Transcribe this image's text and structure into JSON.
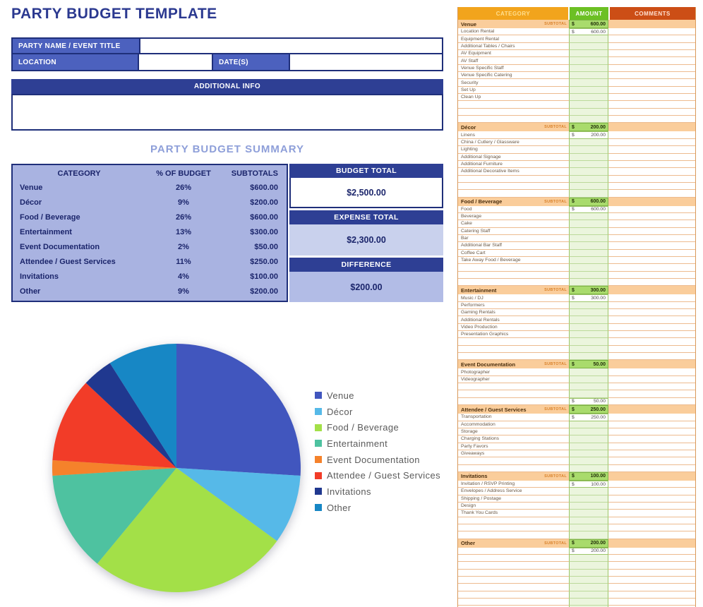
{
  "page_title": "PARTY BUDGET TEMPLATE",
  "form": {
    "party_name_label": "PARTY NAME / EVENT TITLE",
    "party_name_value": "",
    "location_label": "LOCATION",
    "location_value": "",
    "dates_label": "DATE(S)",
    "dates_value": "",
    "additional_info_label": "ADDITIONAL INFO",
    "additional_info_value": ""
  },
  "summary": {
    "title": "PARTY BUDGET SUMMARY",
    "columns": [
      "CATEGORY",
      "% OF BUDGET",
      "SUBTOTALS"
    ],
    "rows": [
      {
        "category": "Venue",
        "percent": "26%",
        "subtotal": "$600.00"
      },
      {
        "category": "Décor",
        "percent": "9%",
        "subtotal": "$200.00"
      },
      {
        "category": "Food / Beverage",
        "percent": "26%",
        "subtotal": "$600.00"
      },
      {
        "category": "Entertainment",
        "percent": "13%",
        "subtotal": "$300.00"
      },
      {
        "category": "Event Documentation",
        "percent": "2%",
        "subtotal": "$50.00"
      },
      {
        "category": "Attendee / Guest Services",
        "percent": "11%",
        "subtotal": "$250.00"
      },
      {
        "category": "Invitations",
        "percent": "4%",
        "subtotal": "$100.00"
      },
      {
        "category": "Other",
        "percent": "9%",
        "subtotal": "$200.00"
      }
    ],
    "budget_total_label": "BUDGET TOTAL",
    "budget_total_value": "$2,500.00",
    "expense_total_label": "EXPENSE TOTAL",
    "expense_total_value": "$2,300.00",
    "difference_label": "DIFFERENCE",
    "difference_value": "$200.00"
  },
  "chart_data": {
    "type": "pie",
    "title": "",
    "categories": [
      "Venue",
      "Décor",
      "Food / Beverage",
      "Entertainment",
      "Event Documentation",
      "Attendee / Guest Services",
      "Invitations",
      "Other"
    ],
    "values": [
      26,
      9,
      26,
      13,
      2,
      11,
      4,
      9
    ],
    "subtotals_usd": [
      600,
      200,
      600,
      300,
      50,
      250,
      100,
      200
    ],
    "colors": [
      "#4156BE",
      "#56B9E8",
      "#A3E048",
      "#4EC2A0",
      "#F5822B",
      "#F23C28",
      "#20388F",
      "#1787C5"
    ],
    "legend_position": "right",
    "start_angle_deg": 0,
    "direction": "clockwise"
  },
  "sheet": {
    "columns": [
      "CATEGORY",
      "AMOUNT",
      "COMMENTS"
    ],
    "subtotal_label": "SUBTOTAL",
    "currency_symbol": "$",
    "sections": [
      {
        "name": "Venue",
        "subtotal": "600.00",
        "rows": [
          {
            "label": "Location Rental",
            "amount": "600.00",
            "comment": ""
          },
          {
            "label": "Equipment Rental",
            "amount": "",
            "comment": ""
          },
          {
            "label": "Additional Tables / Chairs",
            "amount": "",
            "comment": ""
          },
          {
            "label": "AV Equipment",
            "amount": "",
            "comment": ""
          },
          {
            "label": "AV Staff",
            "amount": "",
            "comment": ""
          },
          {
            "label": "Venue Specific Staff",
            "amount": "",
            "comment": ""
          },
          {
            "label": "Venue Specific Catering",
            "amount": "",
            "comment": ""
          },
          {
            "label": "Security",
            "amount": "",
            "comment": ""
          },
          {
            "label": "Set Up",
            "amount": "",
            "comment": ""
          },
          {
            "label": "Clean Up",
            "amount": "",
            "comment": ""
          },
          {
            "label": "",
            "amount": "",
            "comment": ""
          },
          {
            "label": "",
            "amount": "",
            "comment": ""
          },
          {
            "label": "",
            "amount": "",
            "comment": ""
          }
        ]
      },
      {
        "name": "Décor",
        "subtotal": "200.00",
        "rows": [
          {
            "label": "Linens",
            "amount": "200.00",
            "comment": ""
          },
          {
            "label": "China / Cutlery / Glassware",
            "amount": "",
            "comment": ""
          },
          {
            "label": "Lighting",
            "amount": "",
            "comment": ""
          },
          {
            "label": "Additional Signage",
            "amount": "",
            "comment": ""
          },
          {
            "label": "Additional Furniture",
            "amount": "",
            "comment": ""
          },
          {
            "label": "Additional Decorative Items",
            "amount": "",
            "comment": ""
          },
          {
            "label": "",
            "amount": "",
            "comment": ""
          },
          {
            "label": "",
            "amount": "",
            "comment": ""
          },
          {
            "label": "",
            "amount": "",
            "comment": ""
          }
        ]
      },
      {
        "name": "Food / Beverage",
        "subtotal": "600.00",
        "rows": [
          {
            "label": "Food",
            "amount": "600.00",
            "comment": ""
          },
          {
            "label": "Beverage",
            "amount": "",
            "comment": ""
          },
          {
            "label": "Cake",
            "amount": "",
            "comment": ""
          },
          {
            "label": "Catering Staff",
            "amount": "",
            "comment": ""
          },
          {
            "label": "Bar",
            "amount": "",
            "comment": ""
          },
          {
            "label": "Additional Bar Staff",
            "amount": "",
            "comment": ""
          },
          {
            "label": "Coffee Cart",
            "amount": "",
            "comment": ""
          },
          {
            "label": "Take Away Food / Beverage",
            "amount": "",
            "comment": ""
          },
          {
            "label": "",
            "amount": "",
            "comment": ""
          },
          {
            "label": "",
            "amount": "",
            "comment": ""
          },
          {
            "label": "",
            "amount": "",
            "comment": ""
          }
        ]
      },
      {
        "name": "Entertainment",
        "subtotal": "300.00",
        "rows": [
          {
            "label": "Music / DJ",
            "amount": "300.00",
            "comment": ""
          },
          {
            "label": "Performers",
            "amount": "",
            "comment": ""
          },
          {
            "label": "Gaming Rentals",
            "amount": "",
            "comment": ""
          },
          {
            "label": "Additional Rentals",
            "amount": "",
            "comment": ""
          },
          {
            "label": "Video Production",
            "amount": "",
            "comment": ""
          },
          {
            "label": "Presentation Graphics",
            "amount": "",
            "comment": ""
          },
          {
            "label": "",
            "amount": "",
            "comment": ""
          },
          {
            "label": "",
            "amount": "",
            "comment": ""
          },
          {
            "label": "",
            "amount": "",
            "comment": ""
          }
        ]
      },
      {
        "name": "Event Documentation",
        "subtotal": "50.00",
        "rows": [
          {
            "label": "Photographer",
            "amount": "",
            "comment": ""
          },
          {
            "label": "Videographer",
            "amount": "",
            "comment": ""
          },
          {
            "label": "",
            "amount": "",
            "comment": ""
          },
          {
            "label": "",
            "amount": "",
            "comment": ""
          },
          {
            "label": "",
            "amount": "50.00",
            "comment": ""
          }
        ]
      },
      {
        "name": "Attendee / Guest Services",
        "subtotal": "250.00",
        "rows": [
          {
            "label": "Transportation",
            "amount": "250.00",
            "comment": ""
          },
          {
            "label": "Accommodation",
            "amount": "",
            "comment": ""
          },
          {
            "label": "Storage",
            "amount": "",
            "comment": ""
          },
          {
            "label": "Charging Stations",
            "amount": "",
            "comment": ""
          },
          {
            "label": "Party Favors",
            "amount": "",
            "comment": ""
          },
          {
            "label": "Giveaways",
            "amount": "",
            "comment": ""
          },
          {
            "label": "",
            "amount": "",
            "comment": ""
          },
          {
            "label": "",
            "amount": "",
            "comment": ""
          }
        ]
      },
      {
        "name": "Invitations",
        "subtotal": "100.00",
        "rows": [
          {
            "label": "Invitation / RSVP Printing",
            "amount": "100.00",
            "comment": ""
          },
          {
            "label": "Envelopes / Address Service",
            "amount": "",
            "comment": ""
          },
          {
            "label": "Shipping / Postage",
            "amount": "",
            "comment": ""
          },
          {
            "label": "Design",
            "amount": "",
            "comment": ""
          },
          {
            "label": "Thank You Cards",
            "amount": "",
            "comment": ""
          },
          {
            "label": "",
            "amount": "",
            "comment": ""
          },
          {
            "label": "",
            "amount": "",
            "comment": ""
          },
          {
            "label": "",
            "amount": "",
            "comment": ""
          }
        ]
      },
      {
        "name": "Other",
        "subtotal": "200.00",
        "rows": [
          {
            "label": "",
            "amount": "200.00",
            "comment": ""
          },
          {
            "label": "",
            "amount": "",
            "comment": ""
          },
          {
            "label": "",
            "amount": "",
            "comment": ""
          },
          {
            "label": "",
            "amount": "",
            "comment": ""
          },
          {
            "label": "",
            "amount": "",
            "comment": ""
          },
          {
            "label": "",
            "amount": "",
            "comment": ""
          },
          {
            "label": "",
            "amount": "",
            "comment": ""
          },
          {
            "label": "",
            "amount": "",
            "comment": ""
          },
          {
            "label": "",
            "amount": "",
            "comment": ""
          }
        ]
      }
    ]
  }
}
